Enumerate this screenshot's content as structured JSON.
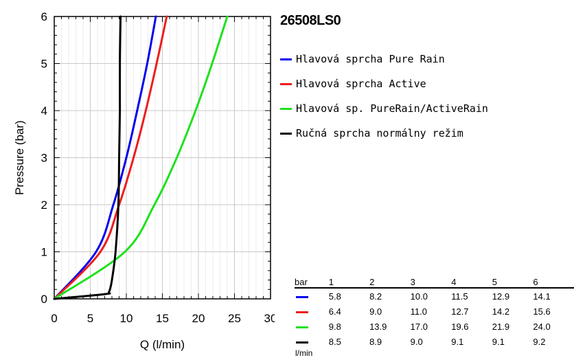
{
  "title": "26508LS0",
  "colors": {
    "blue": "#0000ee",
    "red": "#ee1c1c",
    "green": "#1ee11e",
    "black": "#000000",
    "grid": "#c8c8c8"
  },
  "legend": [
    {
      "label": "Hlavová sprcha Pure Rain",
      "color": "#0000ee"
    },
    {
      "label": "Hlavová sprcha Active",
      "color": "#ee1c1c"
    },
    {
      "label": "Hlavová sp. PureRain/ActiveRain",
      "color": "#1ee11e"
    },
    {
      "label": "Ručná sprcha normálny režim",
      "color": "#000000"
    }
  ],
  "chart_data": {
    "type": "line",
    "xlabel": "Q (l/min)",
    "ylabel": "Pressure (bar)",
    "xlim": [
      0,
      30
    ],
    "ylim": [
      0,
      6
    ],
    "xticks": [
      0,
      5,
      10,
      15,
      20,
      25,
      30
    ],
    "yticks": [
      0,
      1,
      2,
      3,
      4,
      5,
      6
    ],
    "grid": true,
    "series": [
      {
        "name": "Hlavová sprcha Pure Rain",
        "color": "#0000ee",
        "x": [
          0,
          5.8,
          8.2,
          10.0,
          11.5,
          12.9,
          14.1
        ],
        "y": [
          0,
          1,
          2,
          3,
          4,
          5,
          6
        ]
      },
      {
        "name": "Hlavová sprcha Active",
        "color": "#ee1c1c",
        "x": [
          0,
          6.4,
          9.0,
          11.0,
          12.7,
          14.2,
          15.6
        ],
        "y": [
          0,
          1,
          2,
          3,
          4,
          5,
          6
        ]
      },
      {
        "name": "Hlavová sp. PureRain/ActiveRain",
        "color": "#1ee11e",
        "x": [
          0,
          9.8,
          13.9,
          17.0,
          19.6,
          21.9,
          24.0
        ],
        "y": [
          0,
          1,
          2,
          3,
          4,
          5,
          6
        ]
      },
      {
        "name": "Ručná sprcha normálny režim",
        "color": "#000000",
        "x": [
          0,
          7.0,
          7.6,
          8.0,
          8.5,
          8.9,
          9.0,
          9.1,
          9.1,
          9.2
        ],
        "y": [
          0,
          0.1,
          0.15,
          0.4,
          1,
          2,
          3,
          4,
          5,
          6
        ]
      }
    ]
  },
  "table": {
    "unit_top": "bar",
    "unit_bottom": "l/min",
    "headers": [
      "1",
      "2",
      "3",
      "4",
      "5",
      "6"
    ],
    "rows": [
      {
        "color": "#0000ee",
        "values": [
          "5.8",
          "8.2",
          "10.0",
          "11.5",
          "12.9",
          "14.1"
        ]
      },
      {
        "color": "#ee1c1c",
        "values": [
          "6.4",
          "9.0",
          "11.0",
          "12.7",
          "14.2",
          "15.6"
        ]
      },
      {
        "color": "#1ee11e",
        "values": [
          "9.8",
          "13.9",
          "17.0",
          "19.6",
          "21.9",
          "24.0"
        ]
      },
      {
        "color": "#000000",
        "values": [
          "8.5",
          "8.9",
          "9.0",
          "9.1",
          "9.1",
          "9.2"
        ]
      }
    ]
  }
}
